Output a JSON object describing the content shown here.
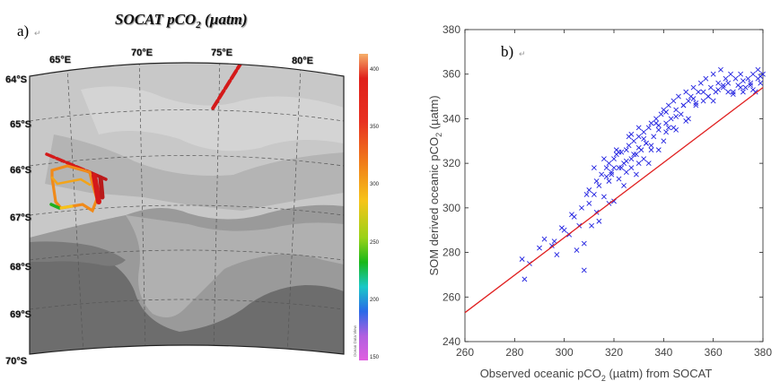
{
  "left_panel": {
    "label": "a)",
    "label_mark": "↵",
    "title_main": "SOCAT pCO",
    "title_sub": "2",
    "title_unit": " (µatm)",
    "lon_labels": [
      "65°E",
      "70°E",
      "75°E",
      "80°E"
    ],
    "lat_labels": [
      "64°S",
      "65°S",
      "66°S",
      "67°S",
      "68°S",
      "69°S",
      "70°S"
    ],
    "colorbar_ticks": [
      "400",
      "350",
      "300",
      "250",
      "200",
      "150"
    ],
    "colorbar_watermark": "Ocean Data View",
    "colors": {
      "sea": "#c9c9c9",
      "land_light": "#9c9c9c",
      "land_dark": "#6b6b6b",
      "red": "#d41a1a",
      "orange": "#f08a1a"
    }
  },
  "right_panel": {
    "label": "b)",
    "label_mark": "↵"
  },
  "chart_data": {
    "type": "scatter",
    "title": "",
    "xlabel_main": "Observed oceanic pCO",
    "xlabel_sub": "2",
    "xlabel_rest": " (µatm) from SOCAT",
    "ylabel_main": "SOM derived oceanic pCO",
    "ylabel_sub": "2",
    "ylabel_rest": " (µatm)",
    "xlim": [
      260,
      380
    ],
    "ylim": [
      240,
      380
    ],
    "xticks": [
      "260",
      "280",
      "300",
      "320",
      "340",
      "360",
      "380"
    ],
    "yticks": [
      "240",
      "260",
      "280",
      "300",
      "320",
      "340",
      "360",
      "380"
    ],
    "marker": "x",
    "marker_color": "#2020e0",
    "fit_line": {
      "x": [
        260,
        380
      ],
      "y": [
        253,
        354
      ],
      "color": "#e02020"
    },
    "series": [
      {
        "x": [
          283,
          284,
          286,
          290,
          292,
          295,
          297,
          300,
          302,
          304,
          305,
          307,
          308,
          310,
          311,
          312,
          313,
          314,
          315,
          316,
          317,
          318,
          318,
          319,
          320,
          320,
          321,
          322,
          322,
          323,
          324,
          324,
          325,
          325,
          326,
          327,
          327,
          328,
          329,
          329,
          330,
          330,
          331,
          332,
          332,
          333,
          334,
          334,
          335,
          335,
          336,
          337,
          338,
          338,
          339,
          340,
          340,
          341,
          342,
          342,
          343,
          344,
          345,
          345,
          346,
          347,
          348,
          349,
          350,
          350,
          351,
          352,
          353,
          354,
          355,
          356,
          357,
          358,
          359,
          360,
          361,
          362,
          363,
          364,
          365,
          366,
          367,
          368,
          369,
          370,
          371,
          372,
          373,
          374,
          375,
          376,
          377,
          378,
          379,
          380,
          306,
          308,
          309,
          312,
          314,
          316,
          318,
          319,
          321,
          323,
          326,
          328,
          330,
          333,
          337,
          341,
          344,
          348,
          352,
          356,
          360,
          364,
          368,
          372,
          376,
          379,
          296,
          299,
          303,
          310,
          313,
          317,
          320,
          322,
          325,
          327,
          330,
          332,
          335,
          338,
          341,
          345,
          349,
          353,
          358,
          362,
          366,
          371,
          375,
          378
        ],
        "y": [
          277,
          268,
          275,
          282,
          286,
          283,
          279,
          290,
          288,
          296,
          281,
          300,
          272,
          302,
          292,
          306,
          298,
          310,
          315,
          305,
          318,
          312,
          320,
          316,
          322,
          303,
          324,
          318,
          313,
          325,
          320,
          310,
          326,
          316,
          328,
          322,
          318,
          330,
          324,
          315,
          332,
          320,
          326,
          334,
          322,
          329,
          336,
          320,
          338,
          328,
          332,
          340,
          335,
          326,
          342,
          344,
          330,
          338,
          346,
          336,
          340,
          348,
          344,
          335,
          350,
          342,
          346,
          352,
          340,
          348,
          350,
          354,
          346,
          352,
          356,
          348,
          358,
          350,
          354,
          360,
          352,
          356,
          362,
          354,
          358,
          356,
          360,
          352,
          358,
          355,
          360,
          352,
          354,
          358,
          356,
          360,
          352,
          362,
          356,
          360,
          292,
          284,
          306,
          318,
          294,
          322,
          302,
          315,
          326,
          318,
          332,
          324,
          336,
          329,
          338,
          343,
          336,
          346,
          349,
          352,
          348,
          355,
          351,
          357,
          353,
          359,
          285,
          291,
          297,
          308,
          312,
          314,
          318,
          325,
          321,
          333,
          327,
          331,
          326,
          337,
          334,
          341,
          339,
          347,
          350,
          353,
          352,
          354,
          355,
          358
        ]
      }
    ]
  }
}
